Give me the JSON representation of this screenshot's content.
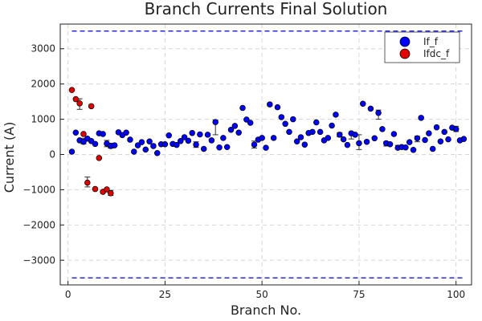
{
  "chart_data": {
    "type": "scatter",
    "title": "Branch Currents Final Solution",
    "xlabel": "Branch No.",
    "ylabel": "Current (A)",
    "xlim": [
      -2,
      104
    ],
    "ylim": [
      -3700,
      3700
    ],
    "xticks": [
      0,
      25,
      50,
      75,
      100
    ],
    "yticks": [
      3000,
      2000,
      1000,
      0,
      -1000,
      -2000,
      -3000
    ],
    "ytick_labels": [
      "3000",
      "2000",
      "1000",
      "0",
      "−1000",
      "−2000",
      "−3000"
    ],
    "grid": true,
    "legend_position": "top-right",
    "limit_lines": [
      {
        "y": 3500,
        "color": "#0000cc",
        "style": "dashed"
      },
      {
        "y": -3500,
        "color": "#0000cc",
        "style": "dashed"
      }
    ],
    "series": [
      {
        "name": "If_f",
        "color": "#0000ff",
        "points": [
          [
            1,
            80
          ],
          [
            2,
            620
          ],
          [
            3,
            400
          ],
          [
            4,
            360
          ],
          [
            5,
            450
          ],
          [
            6,
            380
          ],
          [
            7,
            300
          ],
          [
            8,
            600
          ],
          [
            9,
            580
          ],
          [
            10,
            310
          ],
          [
            11,
            240
          ],
          [
            12,
            260
          ],
          [
            13,
            630
          ],
          [
            14,
            550
          ],
          [
            15,
            620
          ],
          [
            16,
            420
          ],
          [
            17,
            80
          ],
          [
            18,
            260
          ],
          [
            19,
            350
          ],
          [
            20,
            140
          ],
          [
            21,
            370
          ],
          [
            22,
            240
          ],
          [
            23,
            40
          ],
          [
            24,
            290
          ],
          [
            25,
            290
          ],
          [
            26,
            540
          ],
          [
            27,
            300
          ],
          [
            28,
            270
          ],
          [
            29,
            380
          ],
          [
            30,
            490
          ],
          [
            31,
            390
          ],
          [
            32,
            610
          ],
          [
            33,
            280
          ],
          [
            34,
            570
          ],
          [
            35,
            160
          ],
          [
            36,
            560
          ],
          [
            37,
            400
          ],
          [
            38,
            920
          ],
          [
            39,
            200
          ],
          [
            40,
            470
          ],
          [
            41,
            210
          ],
          [
            42,
            700
          ],
          [
            43,
            810
          ],
          [
            44,
            620
          ],
          [
            45,
            1320
          ],
          [
            46,
            990
          ],
          [
            47,
            900
          ],
          [
            48,
            280
          ],
          [
            49,
            420
          ],
          [
            50,
            470
          ],
          [
            51,
            190
          ],
          [
            52,
            1420
          ],
          [
            53,
            470
          ],
          [
            54,
            1340
          ],
          [
            55,
            1060
          ],
          [
            56,
            870
          ],
          [
            57,
            640
          ],
          [
            58,
            1000
          ],
          [
            59,
            370
          ],
          [
            60,
            490
          ],
          [
            61,
            280
          ],
          [
            62,
            610
          ],
          [
            63,
            640
          ],
          [
            64,
            910
          ],
          [
            65,
            640
          ],
          [
            66,
            400
          ],
          [
            67,
            470
          ],
          [
            68,
            820
          ],
          [
            69,
            1130
          ],
          [
            70,
            560
          ],
          [
            71,
            430
          ],
          [
            72,
            270
          ],
          [
            73,
            600
          ],
          [
            74,
            560
          ],
          [
            75,
            320
          ],
          [
            76,
            1440
          ],
          [
            77,
            360
          ],
          [
            78,
            1300
          ],
          [
            79,
            460
          ],
          [
            80,
            1180
          ],
          [
            81,
            720
          ],
          [
            82,
            320
          ],
          [
            83,
            290
          ],
          [
            84,
            580
          ],
          [
            85,
            190
          ],
          [
            86,
            210
          ],
          [
            87,
            200
          ],
          [
            88,
            350
          ],
          [
            89,
            130
          ],
          [
            90,
            460
          ],
          [
            91,
            1040
          ],
          [
            92,
            410
          ],
          [
            93,
            600
          ],
          [
            94,
            160
          ],
          [
            95,
            770
          ],
          [
            96,
            370
          ],
          [
            97,
            640
          ],
          [
            98,
            430
          ],
          [
            99,
            760
          ],
          [
            100,
            720
          ],
          [
            101,
            400
          ],
          [
            102,
            440
          ]
        ],
        "error_bars": [
          [
            4,
            300,
            460
          ],
          [
            10,
            220,
            400
          ],
          [
            11,
            180,
            320
          ],
          [
            33,
            200,
            360
          ],
          [
            38,
            560,
            980
          ],
          [
            48,
            180,
            380
          ],
          [
            52,
            1380,
            1460
          ],
          [
            70,
            500,
            620
          ],
          [
            73,
            440,
            640
          ],
          [
            75,
            140,
            560
          ],
          [
            80,
            1000,
            1260
          ],
          [
            82,
            240,
            360
          ],
          [
            85,
            150,
            260
          ],
          [
            90,
            360,
            520
          ],
          [
            100,
            650,
            800
          ]
        ]
      },
      {
        "name": "Ifdc_f",
        "color": "#e00000",
        "points": [
          [
            1,
            1830
          ],
          [
            2,
            1570
          ],
          [
            3,
            1450
          ],
          [
            4,
            580
          ],
          [
            5,
            -800
          ],
          [
            6,
            1370
          ],
          [
            7,
            -980
          ],
          [
            8,
            -100
          ],
          [
            9,
            -1060
          ],
          [
            10,
            -990
          ],
          [
            11,
            -1100
          ]
        ],
        "error_bars": [
          [
            3,
            1280,
            1580
          ],
          [
            5,
            -920,
            -640
          ],
          [
            11,
            -1160,
            -1020
          ]
        ]
      }
    ]
  }
}
